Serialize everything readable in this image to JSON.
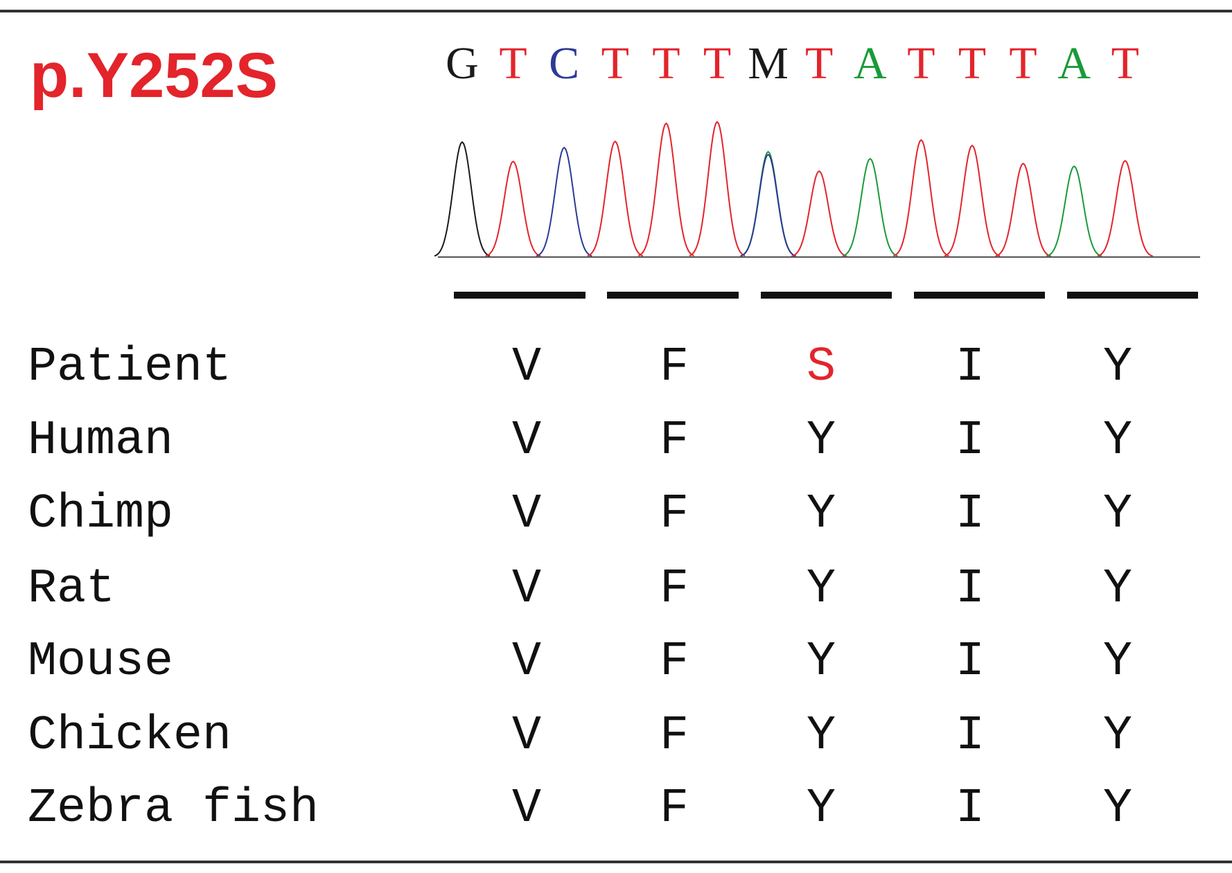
{
  "title": "p.Y252S",
  "title_color": "#e3242b",
  "sequence": [
    "G",
    "T",
    "C",
    "T",
    "T",
    "T",
    "M",
    "T",
    "A",
    "T",
    "T",
    "T",
    "A",
    "T"
  ],
  "base_colors": {
    "G": "#1a1a1a",
    "T": "#e3242b",
    "C": "#2b3a96",
    "A": "#1a9a3a",
    "M": "#1a1a1a"
  },
  "alignment": {
    "rows": [
      {
        "name": "Patient",
        "residues": [
          "V",
          "F",
          "S",
          "I",
          "Y"
        ]
      },
      {
        "name": "Human",
        "residues": [
          "V",
          "F",
          "Y",
          "I",
          "Y"
        ]
      },
      {
        "name": "Chimp",
        "residues": [
          "V",
          "F",
          "Y",
          "I",
          "Y"
        ]
      },
      {
        "name": "Rat",
        "residues": [
          "V",
          "F",
          "Y",
          "I",
          "Y"
        ]
      },
      {
        "name": "Mouse",
        "residues": [
          "V",
          "F",
          "Y",
          "I",
          "Y"
        ]
      },
      {
        "name": "Chicken",
        "residues": [
          "V",
          "F",
          "Y",
          "I",
          "Y"
        ]
      },
      {
        "name": "Zebra fish",
        "residues": [
          "V",
          "F",
          "Y",
          "I",
          "Y"
        ]
      }
    ],
    "mutation": {
      "row": 0,
      "column": 2,
      "color": "#e3242b"
    }
  }
}
